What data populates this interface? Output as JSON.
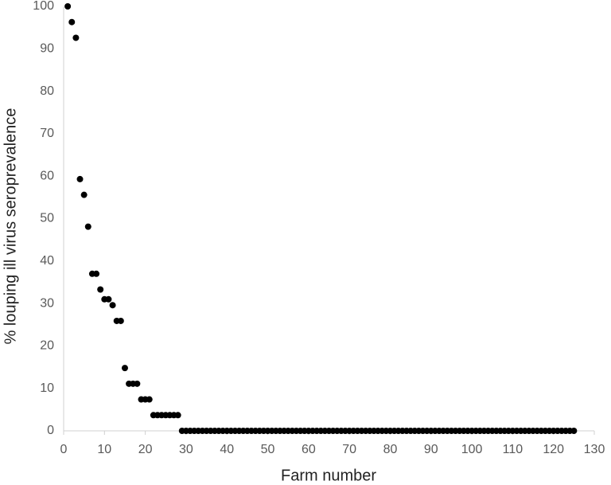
{
  "chart_data": {
    "type": "scatter",
    "x_label": "Farm number",
    "y_label": "% louping ill virus seroprevalence",
    "color": "#000000",
    "xlim": [
      0,
      130
    ],
    "xticks": [
      0,
      10,
      20,
      30,
      40,
      50,
      60,
      70,
      80,
      90,
      100,
      110,
      120,
      130
    ],
    "ylim": [
      0,
      100
    ],
    "yticks": [
      0,
      10,
      20,
      30,
      40,
      50,
      60,
      70,
      80,
      90,
      100
    ],
    "grid": false,
    "x": [
      1,
      2,
      3,
      4,
      5,
      6,
      7,
      8,
      9,
      10,
      11,
      12,
      13,
      14,
      15,
      16,
      17,
      18,
      19,
      20,
      21,
      22,
      23,
      24,
      25,
      26,
      27,
      28,
      29,
      30,
      31,
      32,
      33,
      34,
      35,
      36,
      37,
      38,
      39,
      40,
      41,
      42,
      43,
      44,
      45,
      46,
      47,
      48,
      49,
      50,
      51,
      52,
      53,
      54,
      55,
      56,
      57,
      58,
      59,
      60,
      61,
      62,
      63,
      64,
      65,
      66,
      67,
      68,
      69,
      70,
      71,
      72,
      73,
      74,
      75,
      76,
      77,
      78,
      79,
      80,
      81,
      82,
      83,
      84,
      85,
      86,
      87,
      88,
      89,
      90,
      91,
      92,
      93,
      94,
      95,
      96,
      97,
      98,
      99,
      100,
      101,
      102,
      103,
      104,
      105,
      106,
      107,
      108,
      109,
      110,
      111,
      112,
      113,
      114,
      115,
      116,
      117,
      118,
      119,
      120,
      121,
      122,
      123,
      124,
      125
    ],
    "values": [
      100,
      96.3,
      92.6,
      59.3,
      55.6,
      48.1,
      37,
      37,
      33.3,
      31,
      31,
      29.6,
      25.9,
      25.9,
      14.8,
      11.1,
      11.1,
      11.1,
      7.4,
      7.4,
      7.4,
      3.7,
      3.7,
      3.7,
      3.7,
      3.7,
      3.7,
      3.7,
      0,
      0,
      0,
      0,
      0,
      0,
      0,
      0,
      0,
      0,
      0,
      0,
      0,
      0,
      0,
      0,
      0,
      0,
      0,
      0,
      0,
      0,
      0,
      0,
      0,
      0,
      0,
      0,
      0,
      0,
      0,
      0,
      0,
      0,
      0,
      0,
      0,
      0,
      0,
      0,
      0,
      0,
      0,
      0,
      0,
      0,
      0,
      0,
      0,
      0,
      0,
      0,
      0,
      0,
      0,
      0,
      0,
      0,
      0,
      0,
      0,
      0,
      0,
      0,
      0,
      0,
      0,
      0,
      0,
      0,
      0,
      0,
      0,
      0,
      0,
      0,
      0,
      0,
      0,
      0,
      0,
      0,
      0,
      0,
      0,
      0,
      0,
      0,
      0,
      0,
      0,
      0,
      0,
      0,
      0,
      0,
      0
    ]
  }
}
